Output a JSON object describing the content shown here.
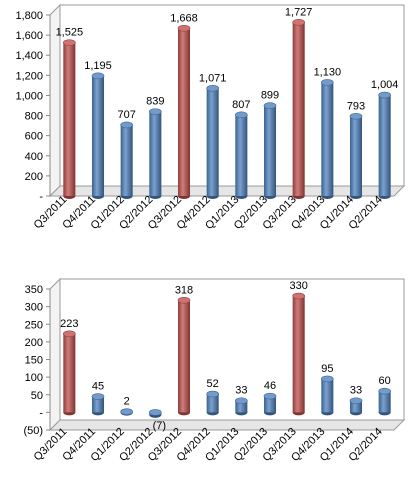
{
  "chart_data": [
    {
      "type": "bar",
      "style": "3d-cylinder",
      "categories": [
        "Q3/2011",
        "Q4/2011",
        "Q1/2012",
        "Q2/2012",
        "Q3/2012",
        "Q4/2012",
        "Q1/2013",
        "Q2/2013",
        "Q3/2013",
        "Q4/2013",
        "Q1/2014",
        "Q2/2014"
      ],
      "values": [
        1525,
        1195,
        707,
        839,
        1668,
        1071,
        807,
        899,
        1727,
        1130,
        793,
        1004
      ],
      "value_labels": [
        "1,525",
        "1,195",
        "707",
        "839",
        "1,668",
        "1,071",
        "807",
        "899",
        "1,727",
        "1,130",
        "793",
        "1,004"
      ],
      "highlight_categories": [
        "Q3/2011",
        "Q3/2012",
        "Q3/2013"
      ],
      "ylim": [
        0,
        1800
      ],
      "yticks": [
        0,
        200,
        400,
        600,
        800,
        1000,
        1200,
        1400,
        1600,
        1800
      ],
      "ytick_labels": [
        "-",
        "200",
        "400",
        "600",
        "800",
        "1,000",
        "1,200",
        "1,400",
        "1,600",
        "1,800"
      ],
      "grid": false,
      "colors": {
        "default": "#4f81bd",
        "highlight": "#c0504d"
      }
    },
    {
      "type": "bar",
      "style": "3d-cylinder",
      "categories": [
        "Q3/2011",
        "Q4/2011",
        "Q1/2012",
        "Q2/2012",
        "Q3/2012",
        "Q4/2012",
        "Q1/2013",
        "Q2/2013",
        "Q3/2013",
        "Q4/2013",
        "Q1/2014",
        "Q2/2014"
      ],
      "values": [
        223,
        45,
        2,
        -7,
        318,
        52,
        33,
        46,
        330,
        95,
        33,
        60
      ],
      "value_labels": [
        "223",
        "45",
        "2",
        "(7)",
        "318",
        "52",
        "33",
        "46",
        "330",
        "95",
        "33",
        "60"
      ],
      "highlight_categories": [
        "Q3/2011",
        "Q3/2012",
        "Q3/2013"
      ],
      "ylim": [
        -50,
        350
      ],
      "yticks": [
        -50,
        0,
        50,
        100,
        150,
        200,
        250,
        300,
        350
      ],
      "ytick_labels": [
        "(50)",
        "-",
        "50",
        "100",
        "150",
        "200",
        "250",
        "300",
        "350"
      ],
      "grid": false,
      "colors": {
        "default": "#4f81bd",
        "highlight": "#c0504d"
      }
    }
  ]
}
